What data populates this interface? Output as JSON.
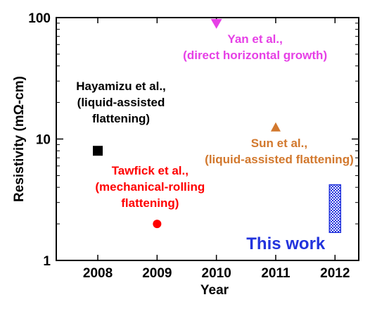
{
  "chart_data": {
    "type": "scatter",
    "xlabel": "Year",
    "ylabel": "Resistivity (mΩ-cm)",
    "y_scale": "log",
    "xlim": [
      2007.3,
      2012.4
    ],
    "ylim": [
      1,
      100
    ],
    "x_ticks": [
      "2008",
      "2009",
      "2010",
      "2011",
      "2012"
    ],
    "y_ticks": [
      "1",
      "10",
      "100"
    ],
    "points": [
      {
        "x": 2008,
        "y": 8,
        "marker": "square",
        "color": "#000000",
        "label": [
          "Hayamizu et al.,",
          "(liquid-assisted",
          "flattening)"
        ]
      },
      {
        "x": 2009,
        "y": 2,
        "marker": "circle",
        "color": "#ff0000",
        "label": [
          "Tawfick et al.,",
          "(mechanical-rolling",
          "flattening)"
        ]
      },
      {
        "x": 2010,
        "y": 90,
        "marker": "triangle-down",
        "color": "#e640e6",
        "label": [
          "Yan et al.,",
          "(direct horizontal growth)"
        ]
      },
      {
        "x": 2011,
        "y": 12.5,
        "marker": "triangle-up",
        "color": "#d2782d",
        "label": [
          "Sun et al.,",
          "(liquid-assisted flattening)"
        ]
      }
    ],
    "range_bar": {
      "x": 2012,
      "y_min": 1.7,
      "y_max": 4.2,
      "color": "#2233dd",
      "label": "This work"
    }
  }
}
